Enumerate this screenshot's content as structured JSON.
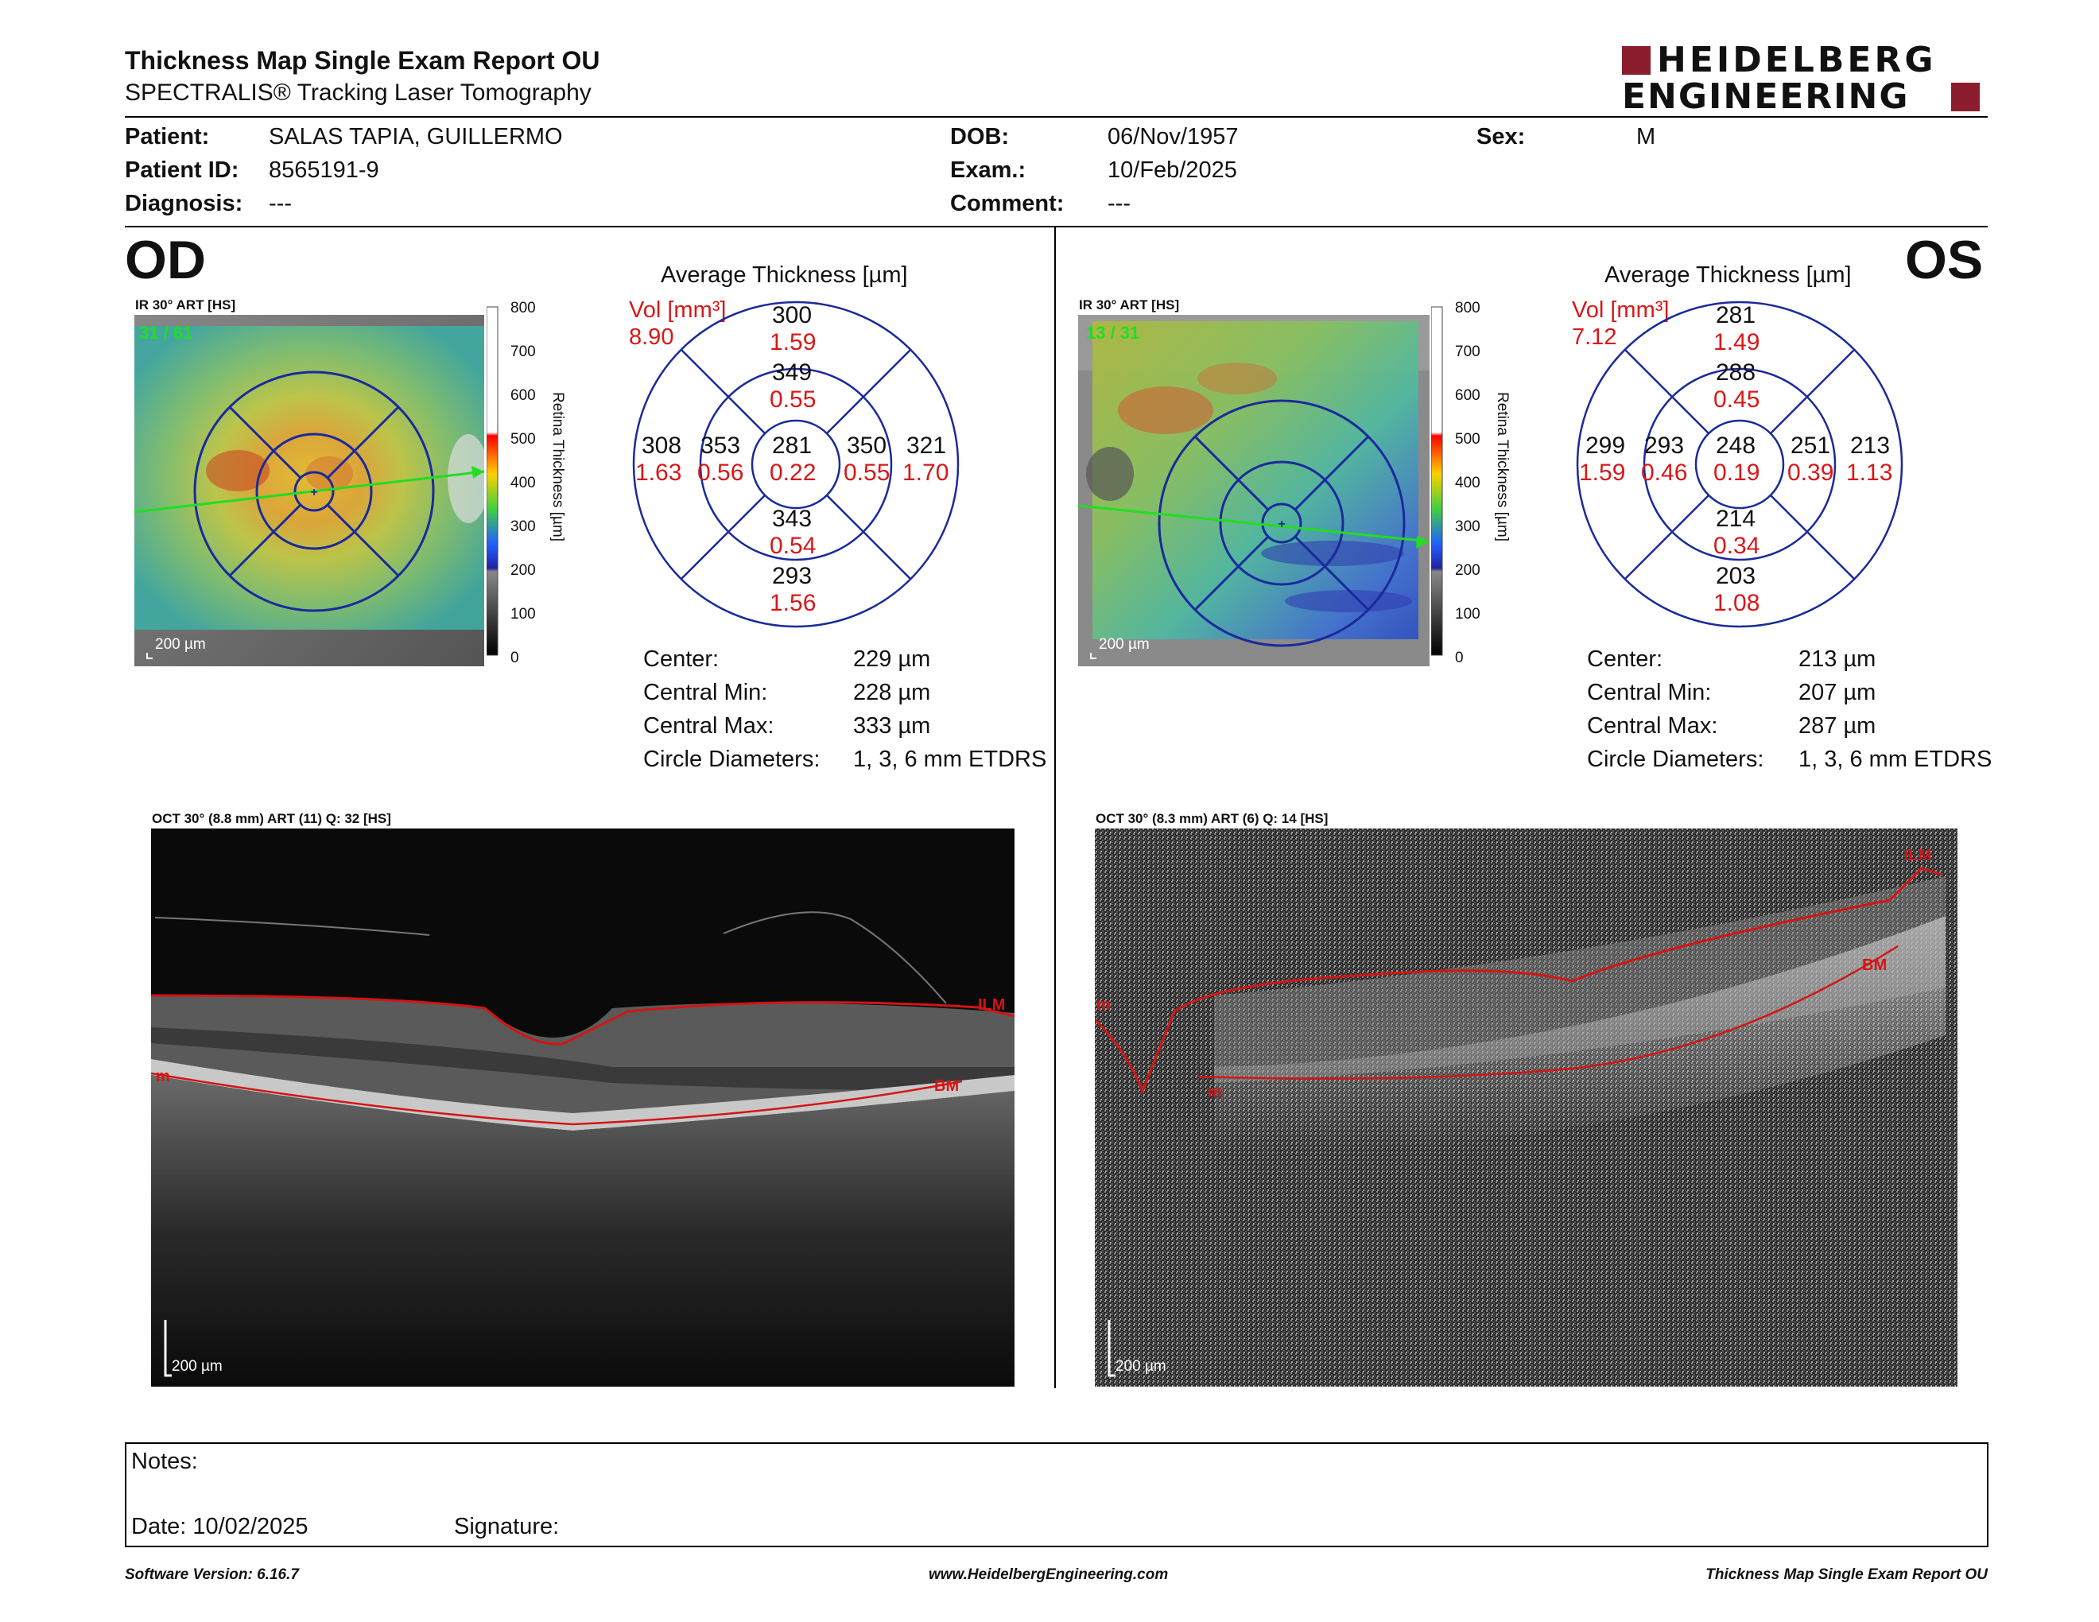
{
  "header": {
    "title": "Thickness Map Single Exam Report OU",
    "subtitle": "SPECTRALIS® Tracking Laser Tomography",
    "logo_line1": "HEIDELBERG",
    "logo_line2": "ENGINEERING"
  },
  "patient": {
    "patient_label": "Patient:",
    "patient": "SALAS TAPIA, GUILLERMO",
    "id_label": "Patient ID:",
    "id": "8565191-9",
    "diagnosis_label": "Diagnosis:",
    "diagnosis": "---",
    "dob_label": "DOB:",
    "dob": "06/Nov/1957",
    "exam_label": "Exam.:",
    "exam": "10/Feb/2025",
    "comment_label": "Comment:",
    "comment": "---",
    "sex_label": "Sex:",
    "sex": "M"
  },
  "colors": {
    "vol_red": "#d81818",
    "ring_blue": "#1a2a9c",
    "scan_arrow": "#22dd22",
    "segmentation_red": "#d41414"
  },
  "colorbar": {
    "ticks": [
      "800",
      "700",
      "600",
      "500",
      "400",
      "300",
      "200",
      "100",
      "0"
    ],
    "label": "Retina Thickness [µm]"
  },
  "od": {
    "eye": "OD",
    "ir_label": "IR 30° ART [HS]",
    "frames": "31 / 61",
    "scale": "200 µm",
    "avg_title": "Average Thickness [µm]",
    "vol_label": "Vol [mm³]",
    "vol_total": "8.90",
    "sectors": {
      "center": {
        "t": "281",
        "v": "0.22"
      },
      "inner_superior": {
        "t": "349",
        "v": "0.55"
      },
      "inner_nasal_left": {
        "t": "353",
        "v": "0.56"
      },
      "inner_temporal_right": {
        "t": "350",
        "v": "0.55"
      },
      "inner_inferior": {
        "t": "343",
        "v": "0.54"
      },
      "outer_superior": {
        "t": "300",
        "v": "1.59"
      },
      "outer_left": {
        "t": "308",
        "v": "1.63"
      },
      "outer_right": {
        "t": "321",
        "v": "1.70"
      },
      "outer_inferior": {
        "t": "293",
        "v": "1.56"
      }
    },
    "stats": [
      {
        "label": "Center:",
        "value": "229 µm"
      },
      {
        "label": "Central Min:",
        "value": "228 µm"
      },
      {
        "label": "Central Max:",
        "value": "333 µm"
      },
      {
        "label": "Circle Diameters:",
        "value": "1, 3, 6 mm ETDRS"
      }
    ],
    "oct_label": "OCT 30° (8.8 mm) ART (11) Q: 32 [HS]",
    "oct_scale": "200 µm",
    "ilm": "ILM",
    "bm": "BM",
    "m": "m"
  },
  "os": {
    "eye": "OS",
    "ir_label": "IR 30° ART [HS]",
    "frames": "13 / 31",
    "scale": "200 µm",
    "avg_title": "Average Thickness [µm]",
    "vol_label": "Vol [mm³]",
    "vol_total": "7.12",
    "sectors": {
      "center": {
        "t": "248",
        "v": "0.19"
      },
      "inner_superior": {
        "t": "288",
        "v": "0.45"
      },
      "inner_nasal_left": {
        "t": "293",
        "v": "0.46"
      },
      "inner_temporal_right": {
        "t": "251",
        "v": "0.39"
      },
      "inner_inferior": {
        "t": "214",
        "v": "0.34"
      },
      "outer_superior": {
        "t": "281",
        "v": "1.49"
      },
      "outer_left": {
        "t": "299",
        "v": "1.59"
      },
      "outer_right": {
        "t": "213",
        "v": "1.13"
      },
      "outer_inferior": {
        "t": "203",
        "v": "1.08"
      }
    },
    "stats": [
      {
        "label": "Center:",
        "value": "213 µm"
      },
      {
        "label": "Central Min:",
        "value": "207 µm"
      },
      {
        "label": "Central Max:",
        "value": "287 µm"
      },
      {
        "label": "Circle Diameters:",
        "value": "1, 3, 6 mm ETDRS"
      }
    ],
    "oct_label": "OCT 30° (8.3 mm) ART (6) Q: 14 [HS]",
    "oct_scale": "200 µm",
    "ilm": "ILM",
    "bm": "BM",
    "m1": "m",
    "m2": "m"
  },
  "notes": {
    "notes_label": "Notes:",
    "date": "Date: 10/02/2025",
    "signature": "Signature:"
  },
  "footer": {
    "left": "Software Version: 6.16.7",
    "center": "www.HeidelbergEngineering.com",
    "right": "Thickness Map Single Exam Report OU"
  }
}
